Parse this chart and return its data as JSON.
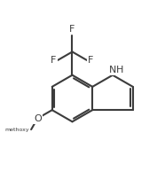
{
  "bg_color": "#ffffff",
  "bond_color": "#3c3c3c",
  "text_color": "#3c3c3c",
  "lw": 1.5,
  "fs": 8.0,
  "figsize": [
    1.77,
    2.11
  ],
  "dpi": 100,
  "bl": 0.155,
  "c7a": [
    0.575,
    0.595
  ],
  "xlim": [
    0.0,
    1.0
  ],
  "ylim": [
    0.05,
    1.05
  ]
}
